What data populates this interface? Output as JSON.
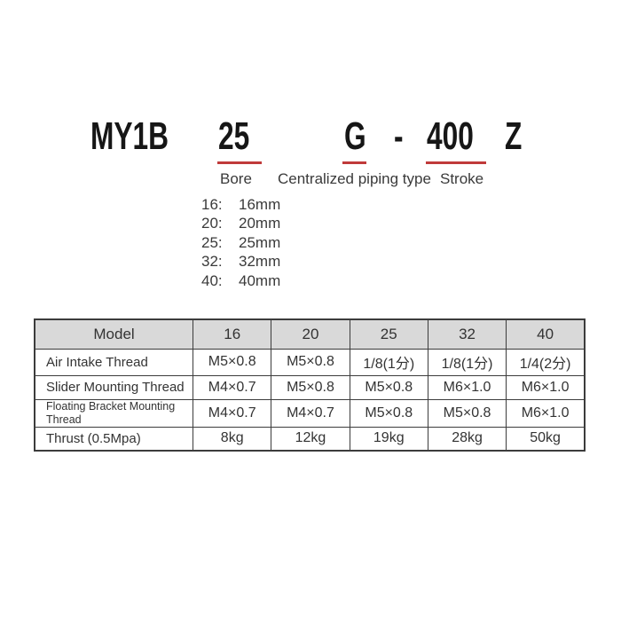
{
  "colors": {
    "accent_red": "#c03a3a",
    "table_header_bg": "#d9d9d9",
    "text": "#333333",
    "title_text": "#161616"
  },
  "model_code": {
    "segments": [
      {
        "text": "MY1B",
        "underlined": false
      },
      {
        "text": "25",
        "underlined": true
      },
      {
        "text": "G",
        "underlined": true
      },
      {
        "text": "-",
        "underlined": false
      },
      {
        "text": "400",
        "underlined": true
      },
      {
        "text": "Z",
        "underlined": false
      }
    ],
    "labels": {
      "bore": "Bore",
      "piping": "Centralized piping type",
      "stroke": "Stroke"
    }
  },
  "bore_options": [
    {
      "code": "16:",
      "size": "16mm"
    },
    {
      "code": "20:",
      "size": "20mm"
    },
    {
      "code": "25:",
      "size": "25mm"
    },
    {
      "code": "32:",
      "size": "32mm"
    },
    {
      "code": "40:",
      "size": "40mm"
    }
  ],
  "spec_table": {
    "header": [
      "Model",
      "16",
      "20",
      "25",
      "32",
      "40"
    ],
    "rows": [
      {
        "label": "Air Intake Thread",
        "values": [
          "M5×0.8",
          "M5×0.8",
          "1/8(1分)",
          "1/8(1分)",
          "1/4(2分)"
        ]
      },
      {
        "label": "Slider Mounting Thread",
        "values": [
          "M4×0.7",
          "M5×0.8",
          "M5×0.8",
          "M6×1.0",
          "M6×1.0"
        ]
      },
      {
        "label": "Floating Bracket Mounting Thread",
        "values": [
          "M4×0.7",
          "M4×0.7",
          "M5×0.8",
          "M5×0.8",
          "M6×1.0"
        ]
      },
      {
        "label": "Thrust (0.5Mpa)",
        "values": [
          "8kg",
          "12kg",
          "19kg",
          "28kg",
          "50kg"
        ]
      }
    ]
  }
}
